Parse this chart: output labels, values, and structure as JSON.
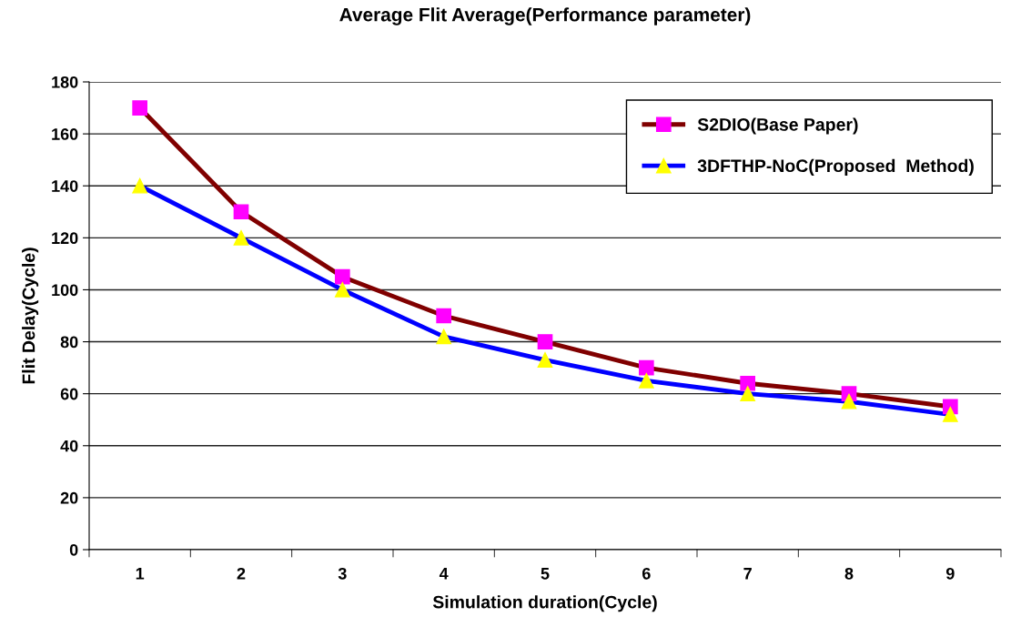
{
  "chart_data": {
    "type": "line",
    "title": "Average Flit Average(Performance parameter)",
    "xlabel": "Simulation duration(Cycle)",
    "ylabel": "Flit Delay(Cycle)",
    "categories": [
      "1",
      "2",
      "3",
      "4",
      "5",
      "6",
      "7",
      "8",
      "9"
    ],
    "series": [
      {
        "name": "S2DIO(Base Paper)",
        "color": "#800000",
        "marker": "square",
        "colors": [
          "#ff00ff",
          "#ff00ff",
          "#ff00ff",
          "#ff00ff",
          "#ff00ff",
          "#ff00ff",
          "#ff00ff",
          "#ff00ff",
          "#ff00ff"
        ],
        "values": [
          170,
          130,
          105,
          90,
          80,
          70,
          64,
          60,
          55
        ]
      },
      {
        "name": "3DFTHP-NoC(Proposed  Method)",
        "color": "#0000ff",
        "marker": "triangle",
        "colors": [
          "#ffff00",
          "#ffff00",
          "#ffff00",
          "#ffff00",
          "#ffff00",
          "#ffff00",
          "#ffff00",
          "#ffff00",
          "#ffff00"
        ],
        "values": [
          140,
          120,
          100,
          82,
          73,
          65,
          60,
          57,
          52
        ]
      }
    ],
    "ylim": [
      0,
      180
    ],
    "yticks": [
      0,
      20,
      40,
      60,
      80,
      100,
      120,
      140,
      160,
      180
    ],
    "grid": "y",
    "legend": "top right",
    "line_style": "solid"
  }
}
